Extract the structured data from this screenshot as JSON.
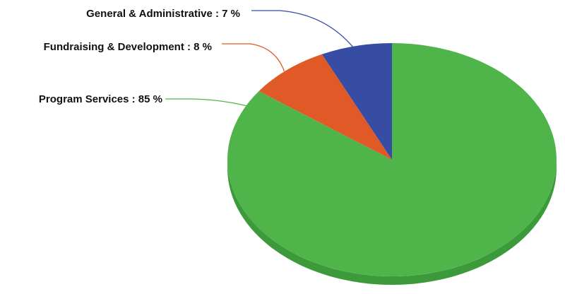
{
  "chart_data": {
    "type": "pie",
    "style": "3d",
    "title": "",
    "slices": [
      {
        "label": "Program Services",
        "value": 85,
        "display": "Program Services : 85 %",
        "color": "#4fb54a",
        "side_color": "#3c9a3a"
      },
      {
        "label": "Fundraising & Development",
        "value": 8,
        "display": "Fundraising & Development : 8 %",
        "color": "#e05a28",
        "side_color": "#b8461c"
      },
      {
        "label": "General & Administrative",
        "value": 7,
        "display": "General & Administrative : 7 %",
        "color": "#374ca3",
        "side_color": "#283b85"
      }
    ]
  }
}
